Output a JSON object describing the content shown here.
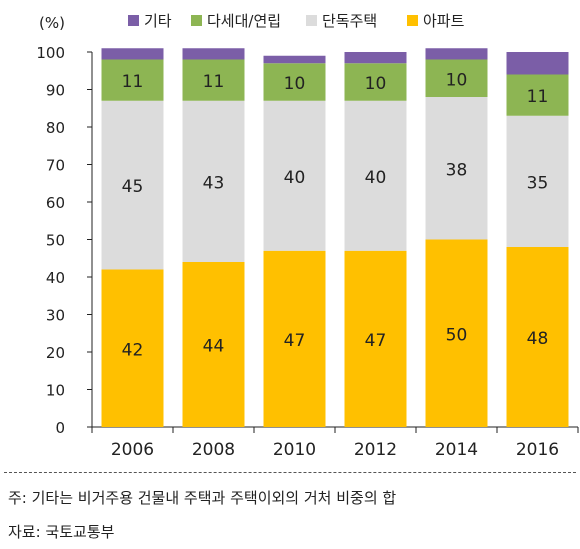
{
  "chart_data": {
    "type": "bar",
    "stacked": true,
    "unit_label": "(%)",
    "categories": [
      "2006",
      "2008",
      "2010",
      "2012",
      "2014",
      "2016"
    ],
    "series": [
      {
        "name": "아파트",
        "color": "#FFC000",
        "values": [
          42,
          44,
          47,
          47,
          50,
          48
        ],
        "labels": [
          "42",
          "44",
          "47",
          "47",
          "50",
          "48"
        ]
      },
      {
        "name": "단독주택",
        "color": "#DCDCDC",
        "values": [
          45,
          43,
          40,
          40,
          38,
          35
        ],
        "labels": [
          "45",
          "43",
          "40",
          "40",
          "38",
          "35"
        ]
      },
      {
        "name": "다세대/연립",
        "color": "#8DB553",
        "values": [
          11,
          11,
          10,
          10,
          10,
          11
        ],
        "labels": [
          "11",
          "11",
          "10",
          "10",
          "10",
          "11"
        ]
      },
      {
        "name": "기타",
        "color": "#7B5EA7",
        "values": [
          3,
          3,
          2,
          3,
          3,
          6
        ],
        "labels": []
      }
    ],
    "ylim": [
      0,
      100
    ],
    "yticks": [
      0,
      10,
      20,
      30,
      40,
      50,
      60,
      70,
      80,
      90,
      100
    ],
    "legend_order": [
      "기타",
      "다세대/연립",
      "단독주택",
      "아파트"
    ],
    "legend_position": "top"
  },
  "legend": {
    "items": [
      "기타",
      "다세대/연립",
      "단독주택",
      "아파트"
    ]
  },
  "notes": {
    "footnote": "주: 기타는 비거주용 건물내 주택과 주택이외의 거처 비중의 합",
    "source": "자료: 국토교통부"
  }
}
